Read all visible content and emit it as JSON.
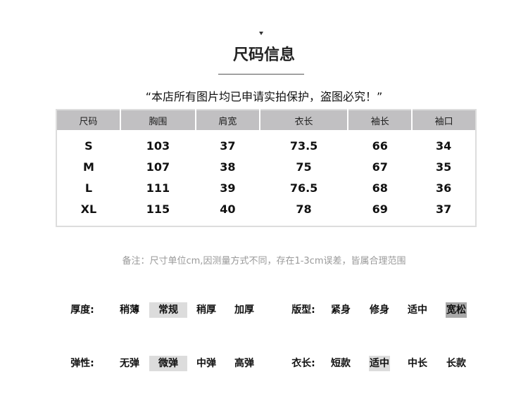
{
  "title": "尺码信息",
  "quote": "“本店所有图片均已申请实拍保护，盗图必究！”",
  "table": {
    "headers": [
      "尺码",
      "胸围",
      "肩宽",
      "衣长",
      "袖长",
      "袖口"
    ],
    "rows": [
      [
        "S",
        "103",
        "37",
        "73.5",
        "66",
        "34"
      ],
      [
        "M",
        "107",
        "38",
        "75",
        "67",
        "35"
      ],
      [
        "L",
        "111",
        "39",
        "76.5",
        "68",
        "36"
      ],
      [
        "XL",
        "115",
        "40",
        "78",
        "69",
        "37"
      ]
    ]
  },
  "note": "备注：尺寸单位cm,因测量方式不同，存在1-3cm误差，皆属合理范围",
  "attributes": [
    {
      "label": "厚度:",
      "options": [
        "稍薄",
        "常规",
        "稍厚",
        "加厚"
      ],
      "selected": "常规"
    },
    {
      "label": "版型:",
      "options": [
        "紧身",
        "修身",
        "适中",
        "宽松"
      ],
      "selected": "宽松"
    },
    {
      "label": "弹性:",
      "options": [
        "无弹",
        "微弹",
        "中弹",
        "高弹"
      ],
      "selected": "微弹"
    },
    {
      "label": "衣长:",
      "options": [
        "短款",
        "适中",
        "中长",
        "长款"
      ],
      "selected": "适中"
    }
  ],
  "colors": {
    "header_bg": "#c1c0c2",
    "highlight_light": "#dcdcdc",
    "highlight_dark": "#a9a9a9"
  }
}
